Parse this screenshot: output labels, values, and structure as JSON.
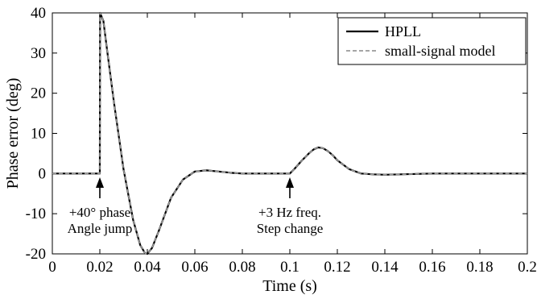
{
  "chart_data": {
    "type": "line",
    "xlabel": "Time (s)",
    "ylabel": "Phase error (deg)",
    "xlim": [
      0,
      0.2
    ],
    "ylim": [
      -20,
      40
    ],
    "xticks": [
      "0",
      "0.02",
      "0.04",
      "0.06",
      "0.08",
      "0.1",
      "0.12",
      "0.14",
      "0.16",
      "0.18",
      "0.2"
    ],
    "yticks": [
      "-20",
      "-10",
      "0",
      "10",
      "20",
      "30",
      "40"
    ],
    "grid": false,
    "legend_position": "top-right",
    "series": [
      {
        "name": "HPLL",
        "color": "#000000",
        "style": "solid",
        "x": [
          0,
          0.019,
          0.02,
          0.0201,
          0.0215,
          0.023,
          0.026,
          0.03,
          0.034,
          0.037,
          0.039,
          0.04,
          0.042,
          0.045,
          0.05,
          0.055,
          0.06,
          0.065,
          0.07,
          0.075,
          0.08,
          0.09,
          0.1,
          0.102,
          0.105,
          0.108,
          0.11,
          0.112,
          0.114,
          0.116,
          0.118,
          0.12,
          0.125,
          0.13,
          0.135,
          0.14,
          0.15,
          0.16,
          0.18,
          0.2
        ],
        "y": [
          0,
          0,
          0,
          40,
          38,
          31,
          17.5,
          1,
          -11.5,
          -17.8,
          -19.8,
          -20,
          -18.5,
          -14,
          -6,
          -1.5,
          0.5,
          0.8,
          0.5,
          0.2,
          0,
          0,
          0,
          1.2,
          3.2,
          5,
          6,
          6.5,
          6.3,
          5.6,
          4.6,
          3.3,
          1.1,
          0,
          -0.2,
          -0.3,
          -0.15,
          0,
          0,
          0
        ]
      },
      {
        "name": "small-signal model",
        "color": "#999999",
        "style": "dashed",
        "x": [
          0,
          0.019,
          0.02,
          0.0201,
          0.0215,
          0.023,
          0.026,
          0.03,
          0.034,
          0.037,
          0.039,
          0.04,
          0.042,
          0.045,
          0.05,
          0.055,
          0.06,
          0.065,
          0.07,
          0.075,
          0.08,
          0.09,
          0.1,
          0.102,
          0.105,
          0.108,
          0.11,
          0.112,
          0.114,
          0.116,
          0.118,
          0.12,
          0.125,
          0.13,
          0.135,
          0.14,
          0.15,
          0.16,
          0.18,
          0.2
        ],
        "y": [
          0,
          0,
          0,
          40,
          38,
          31,
          17.5,
          1,
          -11.5,
          -17.8,
          -19.8,
          -20,
          -18.5,
          -14,
          -6,
          -1.5,
          0.5,
          0.8,
          0.5,
          0.2,
          0,
          0,
          0,
          1.2,
          3.2,
          5,
          6,
          6.5,
          6.3,
          5.6,
          4.6,
          3.3,
          1.1,
          0,
          -0.2,
          -0.3,
          -0.15,
          0,
          0,
          0
        ]
      }
    ],
    "annotations": [
      {
        "x": 0.02,
        "lines": [
          "+40° phase",
          "Angle jump"
        ]
      },
      {
        "x": 0.1,
        "lines": [
          "+3 Hz freq.",
          "Step change"
        ]
      }
    ]
  }
}
